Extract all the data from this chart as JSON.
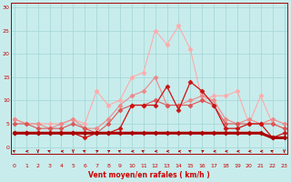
{
  "x": [
    0,
    1,
    2,
    3,
    4,
    5,
    6,
    7,
    8,
    9,
    10,
    11,
    12,
    13,
    14,
    15,
    16,
    17,
    18,
    19,
    20,
    21,
    22,
    23
  ],
  "line_dark_thick": [
    3,
    3,
    3,
    3,
    3,
    3,
    3,
    3,
    3,
    3,
    3,
    3,
    3,
    3,
    3,
    3,
    3,
    3,
    3,
    3,
    3,
    3,
    2,
    2
  ],
  "line_dark_thin": [
    3,
    3,
    3,
    3,
    3,
    3,
    2,
    3,
    3,
    4,
    9,
    9,
    9,
    13,
    8,
    14,
    12,
    9,
    4,
    4,
    5,
    5,
    2,
    3
  ],
  "line_med1": [
    5,
    5,
    4,
    4,
    4,
    5,
    4,
    3,
    5,
    8,
    9,
    9,
    10,
    9,
    9,
    9,
    10,
    9,
    5,
    5,
    5,
    5,
    5,
    4
  ],
  "line_med2": [
    6,
    5,
    5,
    4,
    5,
    6,
    4,
    4,
    6,
    9,
    11,
    12,
    15,
    9,
    9,
    10,
    11,
    10,
    6,
    5,
    6,
    5,
    6,
    5
  ],
  "line_light": [
    6,
    5,
    5,
    5,
    5,
    6,
    5,
    12,
    9,
    10,
    15,
    16,
    25,
    22,
    26,
    21,
    10,
    11,
    11,
    12,
    5,
    11,
    5,
    4
  ],
  "bg_color": "#c8ecec",
  "grid_color": "#a8d8d8",
  "color_dark_thick": "#aa0000",
  "color_dark_thin": "#cc1111",
  "color_med1": "#dd5555",
  "color_med2": "#ee8888",
  "color_light": "#ffaaaa",
  "marker": "D",
  "xlabel": "Vent moyen/en rafales ( km/h )",
  "ylim": [
    -1.5,
    31
  ],
  "xlim": [
    -0.3,
    23.3
  ],
  "yticks": [
    0,
    5,
    10,
    15,
    20,
    25,
    30
  ],
  "xticks": [
    0,
    1,
    2,
    3,
    4,
    5,
    6,
    7,
    8,
    9,
    10,
    11,
    12,
    13,
    14,
    15,
    16,
    17,
    18,
    19,
    20,
    21,
    22,
    23
  ],
  "arrow_angles": [
    225,
    270,
    0,
    225,
    270,
    0,
    225,
    135,
    135,
    225,
    270,
    225,
    270,
    270,
    270,
    225,
    135,
    270,
    270,
    270,
    270,
    270,
    225,
    0
  ]
}
